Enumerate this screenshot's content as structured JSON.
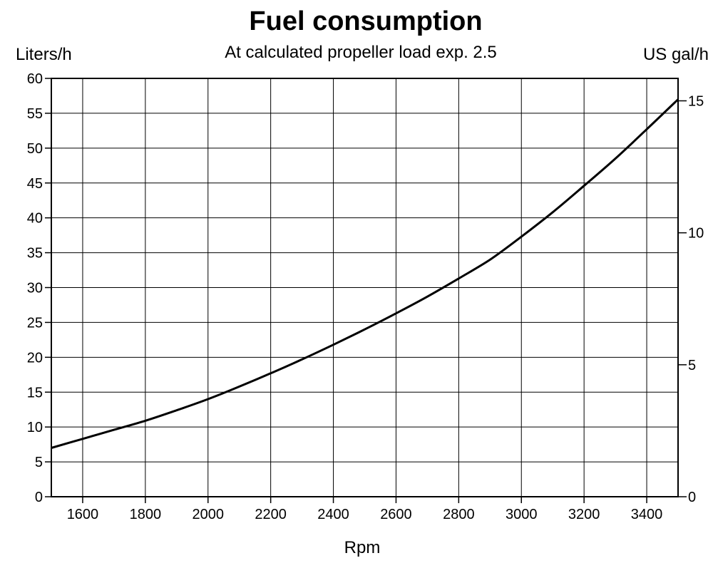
{
  "chart_data": {
    "type": "line",
    "title": "Fuel consumption",
    "subtitle": "At calculated propeller load exp. 2.5",
    "xlabel": "Rpm",
    "ylabel_left": "Liters/h",
    "ylabel_right": "US gal/h",
    "xlim": [
      1500,
      3500
    ],
    "ylim_left": [
      0,
      60
    ],
    "ylim_right": [
      0,
      15.85
    ],
    "x_ticks": [
      1600,
      1800,
      2000,
      2200,
      2400,
      2600,
      2800,
      3000,
      3200,
      3400
    ],
    "x_grid": [
      1600,
      1800,
      2000,
      2200,
      2400,
      2600,
      2800,
      3000,
      3200,
      3400
    ],
    "y_left_ticks": [
      0,
      5,
      10,
      15,
      20,
      25,
      30,
      35,
      40,
      45,
      50,
      55,
      60
    ],
    "y_right_ticks": [
      0,
      5,
      10,
      15
    ],
    "grid": true,
    "series": [
      {
        "x": [
          1500,
          1600,
          1700,
          1800,
          1900,
          2000,
          2100,
          2200,
          2300,
          2400,
          2500,
          2600,
          2700,
          2800,
          2900,
          3000,
          3100,
          3200,
          3300,
          3400,
          3500
        ],
        "values": [
          7.0,
          8.3,
          9.6,
          10.9,
          12.4,
          14.0,
          15.8,
          17.7,
          19.7,
          21.8,
          24.0,
          26.3,
          28.7,
          31.3,
          34.0,
          37.3,
          40.8,
          44.6,
          48.5,
          52.7,
          57.0
        ]
      }
    ],
    "colors": {
      "line": "#000000",
      "grid": "#000000"
    }
  }
}
